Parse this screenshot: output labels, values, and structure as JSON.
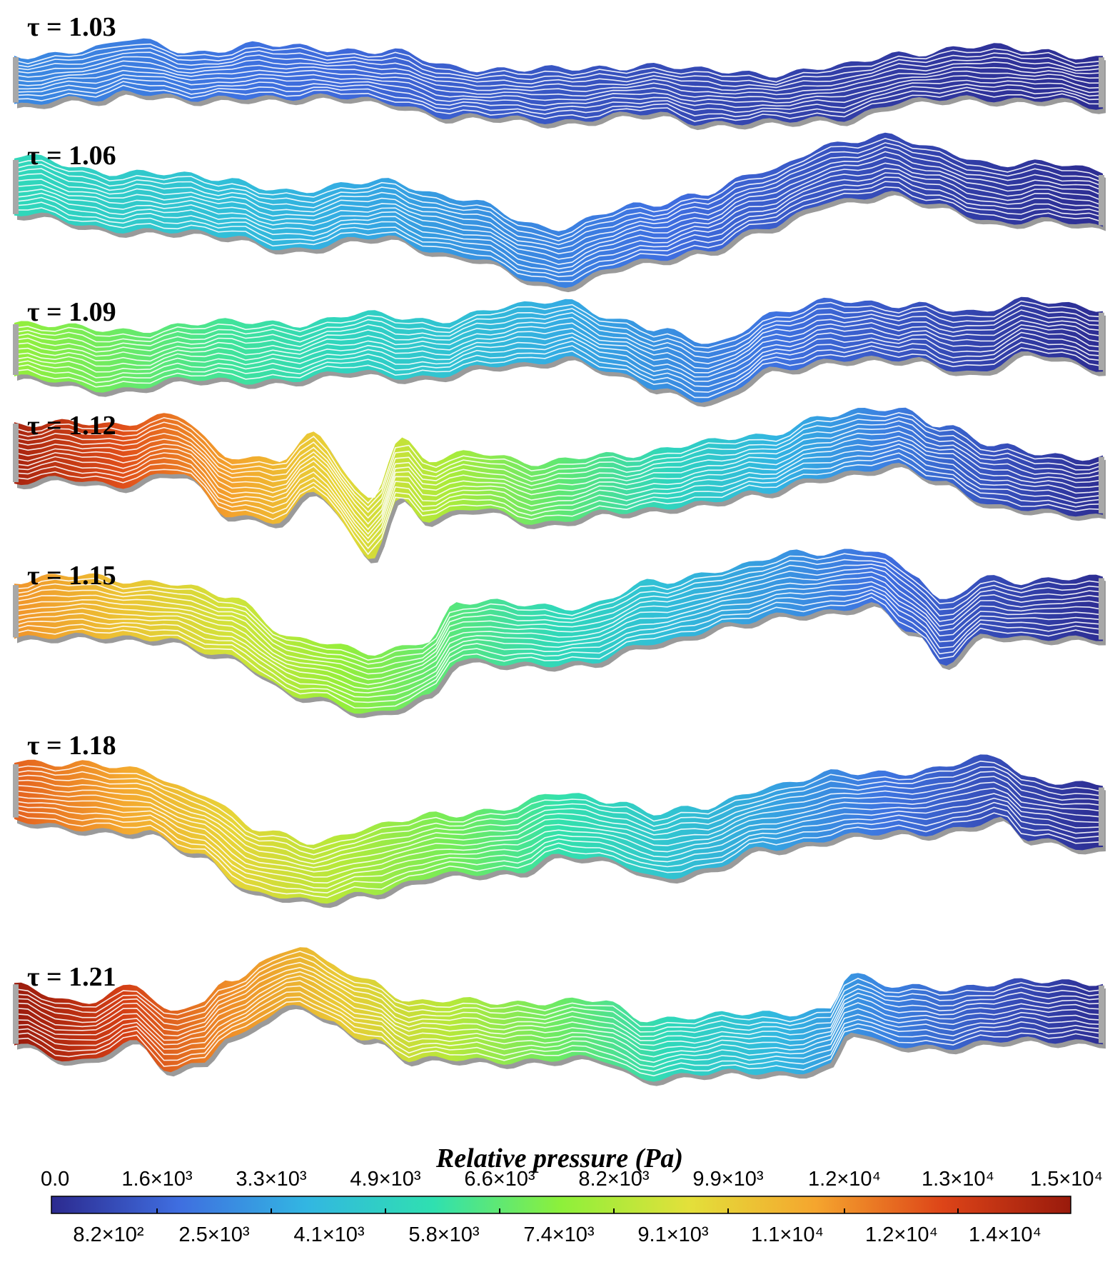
{
  "figure": {
    "panels": [
      {
        "label": "τ = 1.03",
        "max_pressure": 2500
      },
      {
        "label": "τ = 1.06",
        "max_pressure": 5200
      },
      {
        "label": "τ = 1.09",
        "max_pressure": 7600
      },
      {
        "label": "τ = 1.12",
        "max_pressure": 14500
      },
      {
        "label": "τ = 1.15",
        "max_pressure": 11500
      },
      {
        "label": "τ = 1.18",
        "max_pressure": 12500
      },
      {
        "label": "τ = 1.21",
        "max_pressure": 15000
      }
    ],
    "colorbar": {
      "title": "Relative pressure (Pa)",
      "min": 0,
      "max": 15000,
      "top_ticks": [
        "0.0",
        "1.6×10³",
        "3.3×10³",
        "4.9×10³",
        "6.6×10³",
        "8.2×10³",
        "9.9×10³",
        "1.2×10⁴",
        "1.3×10⁴",
        "1.5×10⁴"
      ],
      "bottom_ticks": [
        "8.2×10²",
        "2.5×10³",
        "4.1×10³",
        "5.8×10³",
        "7.4×10³",
        "9.1×10³",
        "1.1×10⁴",
        "1.2×10⁴",
        "1.4×10⁴"
      ],
      "colors": [
        "#2c2a8f",
        "#3f6ee0",
        "#32b6e2",
        "#2fe0b0",
        "#8df03a",
        "#e3e03a",
        "#f5a52e",
        "#dd4418",
        "#991a0c"
      ]
    }
  }
}
